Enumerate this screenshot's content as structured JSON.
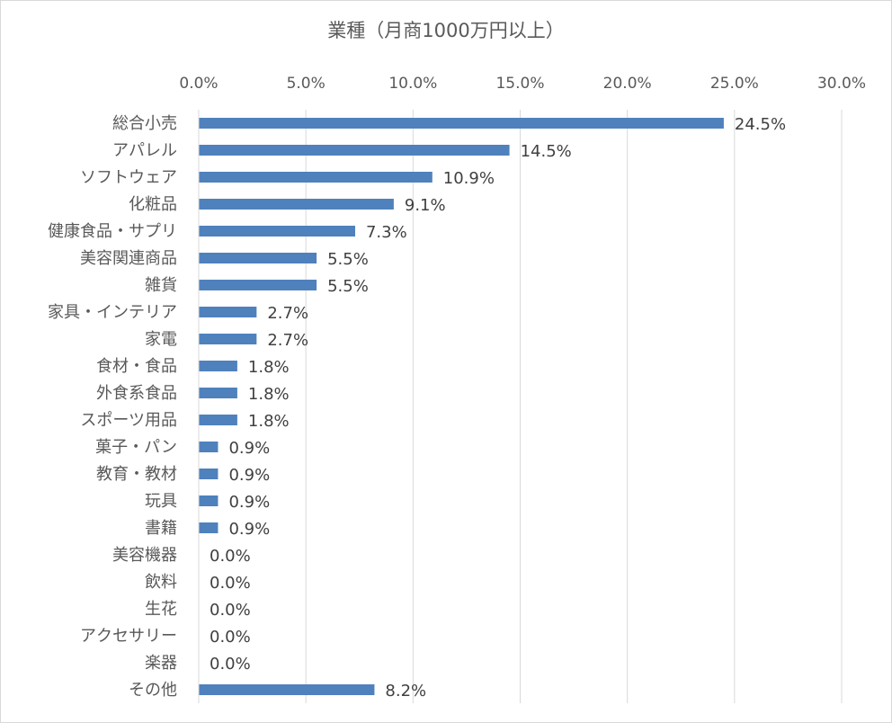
{
  "chart_data": {
    "type": "bar",
    "orientation": "horizontal",
    "title": "業種（月商1000万円以上）",
    "x_axis_position": "top",
    "xlim": [
      0,
      30
    ],
    "x_ticks": [
      "0.0%",
      "5.0%",
      "10.0%",
      "15.0%",
      "20.0%",
      "25.0%",
      "30.0%"
    ],
    "grid": true,
    "legend": "none",
    "bar_color": "#4f81bd",
    "categories": [
      "総合小売",
      "アパレル",
      "ソフトウェア",
      "化粧品",
      "健康食品・サプリ",
      "美容関連商品",
      "雑貨",
      "家具・インテリア",
      "家電",
      "食材・食品",
      "外食系食品",
      "スポーツ用品",
      "菓子・パン",
      "教育・教材",
      "玩具",
      "書籍",
      "美容機器",
      "飲料",
      "生花",
      "アクセサリー",
      "楽器",
      "その他"
    ],
    "values": [
      24.5,
      14.5,
      10.9,
      9.1,
      7.3,
      5.5,
      5.5,
      2.7,
      2.7,
      1.8,
      1.8,
      1.8,
      0.9,
      0.9,
      0.9,
      0.9,
      0.0,
      0.0,
      0.0,
      0.0,
      0.0,
      8.2
    ],
    "data_labels": [
      "24.5%",
      "14.5%",
      "10.9%",
      "9.1%",
      "7.3%",
      "5.5%",
      "5.5%",
      "2.7%",
      "2.7%",
      "1.8%",
      "1.8%",
      "1.8%",
      "0.9%",
      "0.9%",
      "0.9%",
      "0.9%",
      "0.0%",
      "0.0%",
      "0.0%",
      "0.0%",
      "0.0%",
      "8.2%"
    ]
  }
}
